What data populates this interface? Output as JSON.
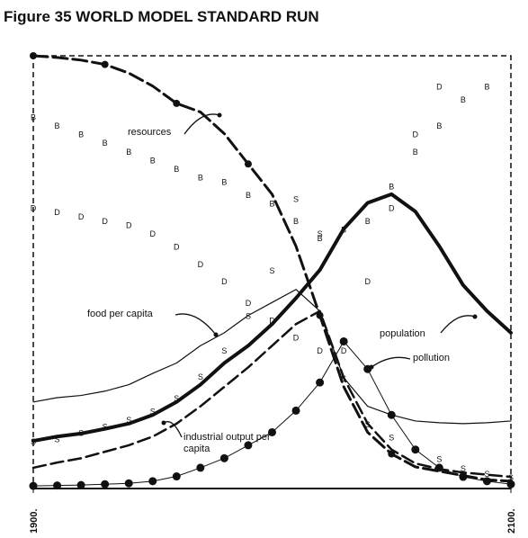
{
  "chart_data": {
    "type": "line",
    "title": "Figure 35 WORLD MODEL STANDARD RUN",
    "x": [
      1900,
      1910,
      1920,
      1930,
      1940,
      1950,
      1960,
      1970,
      1980,
      1990,
      2000,
      2010,
      2020,
      2030,
      2040,
      2050,
      2060,
      2070,
      2080,
      2090,
      2100
    ],
    "xlim": [
      1900,
      2100
    ],
    "xticks": [
      {
        "value": 1900,
        "label": "1900."
      },
      {
        "value": 2100,
        "label": "2100."
      }
    ],
    "ylim": [
      0,
      100
    ],
    "series": [
      {
        "name": "resources",
        "color": "#111111",
        "style": "dashed-dots",
        "values": [
          100,
          99.6,
          99,
          98,
          96,
          93,
          89,
          87,
          82,
          75,
          68,
          56,
          40,
          23.5,
          13,
          8,
          5,
          4,
          3,
          2,
          1.7
        ]
      },
      {
        "name": "food per capita",
        "color": "#111111",
        "style": "thin",
        "values": [
          20,
          21,
          21.5,
          22.5,
          24,
          26.6,
          29,
          33,
          36,
          40,
          43,
          46,
          41,
          25.6,
          19,
          17,
          15.6,
          15.2,
          15,
          15.2,
          15.6
        ]
      },
      {
        "name": "population",
        "color": "#111111",
        "style": "thick",
        "values": [
          11,
          12,
          12.7,
          13.8,
          15,
          17,
          20,
          24,
          29,
          33,
          38,
          44,
          50.5,
          60,
          66,
          68,
          64,
          56,
          47,
          41,
          36
        ]
      },
      {
        "name": "pollution",
        "color": "#111111",
        "style": "dots",
        "values": [
          0.6,
          0.7,
          0.8,
          1,
          1.2,
          1.7,
          2.8,
          4.8,
          7,
          10,
          13,
          18,
          24.5,
          34,
          27.6,
          17,
          9,
          4.8,
          2.7,
          1.7,
          1
        ]
      },
      {
        "name": "industrial output per capita",
        "color": "#111111",
        "style": "dashed",
        "values": [
          4.8,
          6,
          7,
          8.5,
          10,
          12,
          15,
          19,
          23.5,
          28,
          33,
          38,
          41,
          25.6,
          15,
          9,
          5.8,
          4.5,
          3.7,
          3.2,
          2.7
        ]
      },
      {
        "marker": "B",
        "color": "#111111",
        "style": "letters",
        "values": [
          86,
          84,
          82,
          80,
          78,
          76,
          74,
          72,
          71,
          68,
          66,
          62,
          58,
          60,
          62,
          70,
          78,
          84,
          90,
          93,
          null
        ]
      },
      {
        "marker": "D",
        "color": "#111111",
        "style": "letters",
        "values": [
          65,
          64,
          63,
          62,
          61,
          59,
          56,
          52,
          48,
          43,
          39,
          35,
          32,
          32,
          48,
          65,
          82,
          93,
          null,
          null,
          null
        ]
      },
      {
        "marker": "S",
        "color": "#111111",
        "style": "letters",
        "values": [
          11,
          11.5,
          13,
          14.5,
          16,
          18,
          21,
          26,
          32,
          40,
          50.5,
          67,
          59,
          25.6,
          15,
          12,
          9,
          7,
          4.8,
          3.5,
          2.7
        ]
      }
    ]
  }
}
